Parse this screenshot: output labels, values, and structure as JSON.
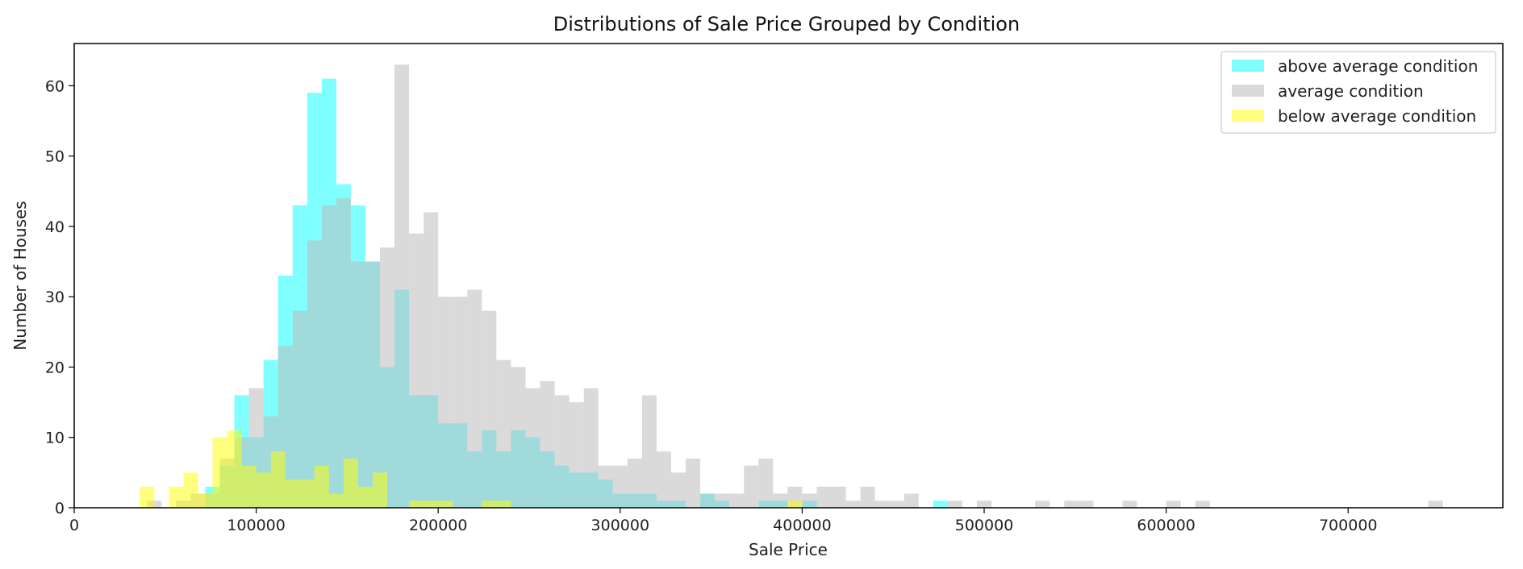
{
  "chart_data": {
    "type": "bar",
    "title": "Distributions of Sale Price Grouped by Condition",
    "xlabel": "Sale Price",
    "ylabel": "Number of Houses",
    "xlim": [
      0,
      785000
    ],
    "ylim": [
      0,
      66
    ],
    "xticks": [
      0,
      100000,
      200000,
      300000,
      400000,
      500000,
      600000,
      700000
    ],
    "yticks": [
      0,
      10,
      20,
      30,
      40,
      50,
      60
    ],
    "bin_width": 8000,
    "grid": false,
    "legend_position": "top-right",
    "series": [
      {
        "name": "above average condition",
        "color": "#00ffff",
        "opacity": 0.5,
        "bins": [
          [
            72000,
            3
          ],
          [
            80000,
            6
          ],
          [
            88000,
            16
          ],
          [
            96000,
            10
          ],
          [
            104000,
            21
          ],
          [
            112000,
            33
          ],
          [
            120000,
            43
          ],
          [
            128000,
            59
          ],
          [
            136000,
            61
          ],
          [
            144000,
            46
          ],
          [
            152000,
            43
          ],
          [
            160000,
            35
          ],
          [
            168000,
            20
          ],
          [
            176000,
            31
          ],
          [
            184000,
            16
          ],
          [
            192000,
            16
          ],
          [
            200000,
            12
          ],
          [
            208000,
            12
          ],
          [
            216000,
            8
          ],
          [
            224000,
            11
          ],
          [
            232000,
            8
          ],
          [
            240000,
            11
          ],
          [
            248000,
            10
          ],
          [
            256000,
            8
          ],
          [
            264000,
            6
          ],
          [
            272000,
            5
          ],
          [
            280000,
            5
          ],
          [
            288000,
            4
          ],
          [
            296000,
            2
          ],
          [
            304000,
            2
          ],
          [
            312000,
            2
          ],
          [
            320000,
            1
          ],
          [
            328000,
            1
          ],
          [
            344000,
            2
          ],
          [
            352000,
            1
          ],
          [
            376000,
            1
          ],
          [
            384000,
            1
          ],
          [
            400000,
            1
          ],
          [
            472000,
            1
          ]
        ]
      },
      {
        "name": "average condition",
        "color": "#bbbbbb",
        "opacity": 0.55,
        "bins": [
          [
            40000,
            1
          ],
          [
            56000,
            1
          ],
          [
            64000,
            2
          ],
          [
            72000,
            2
          ],
          [
            80000,
            7
          ],
          [
            88000,
            10
          ],
          [
            96000,
            17
          ],
          [
            104000,
            13
          ],
          [
            112000,
            23
          ],
          [
            120000,
            28
          ],
          [
            128000,
            38
          ],
          [
            136000,
            43
          ],
          [
            144000,
            44
          ],
          [
            152000,
            35
          ],
          [
            160000,
            35
          ],
          [
            168000,
            37
          ],
          [
            176000,
            63
          ],
          [
            184000,
            39
          ],
          [
            192000,
            42
          ],
          [
            200000,
            30
          ],
          [
            208000,
            30
          ],
          [
            216000,
            31
          ],
          [
            224000,
            28
          ],
          [
            232000,
            21
          ],
          [
            240000,
            20
          ],
          [
            248000,
            17
          ],
          [
            256000,
            18
          ],
          [
            264000,
            16
          ],
          [
            272000,
            15
          ],
          [
            280000,
            17
          ],
          [
            288000,
            6
          ],
          [
            296000,
            6
          ],
          [
            304000,
            7
          ],
          [
            312000,
            16
          ],
          [
            320000,
            8
          ],
          [
            328000,
            5
          ],
          [
            336000,
            7
          ],
          [
            344000,
            2
          ],
          [
            352000,
            2
          ],
          [
            360000,
            2
          ],
          [
            368000,
            6
          ],
          [
            376000,
            7
          ],
          [
            384000,
            2
          ],
          [
            392000,
            3
          ],
          [
            400000,
            2
          ],
          [
            408000,
            3
          ],
          [
            416000,
            3
          ],
          [
            424000,
            1
          ],
          [
            432000,
            3
          ],
          [
            440000,
            1
          ],
          [
            448000,
            1
          ],
          [
            456000,
            2
          ],
          [
            480000,
            1
          ],
          [
            496000,
            1
          ],
          [
            528000,
            1
          ],
          [
            544000,
            1
          ],
          [
            552000,
            1
          ],
          [
            576000,
            1
          ],
          [
            600000,
            1
          ],
          [
            616000,
            1
          ],
          [
            744000,
            1
          ]
        ]
      },
      {
        "name": "below average condition",
        "color": "#ffff00",
        "opacity": 0.5,
        "bins": [
          [
            36000,
            3
          ],
          [
            52000,
            3
          ],
          [
            60000,
            5
          ],
          [
            68000,
            2
          ],
          [
            76000,
            10
          ],
          [
            84000,
            11
          ],
          [
            92000,
            6
          ],
          [
            100000,
            5
          ],
          [
            108000,
            8
          ],
          [
            116000,
            4
          ],
          [
            124000,
            4
          ],
          [
            132000,
            6
          ],
          [
            140000,
            2
          ],
          [
            148000,
            7
          ],
          [
            156000,
            3
          ],
          [
            164000,
            5
          ],
          [
            184000,
            1
          ],
          [
            192000,
            1
          ],
          [
            200000,
            1
          ],
          [
            224000,
            1
          ],
          [
            232000,
            1
          ],
          [
            392000,
            1
          ]
        ]
      }
    ]
  }
}
